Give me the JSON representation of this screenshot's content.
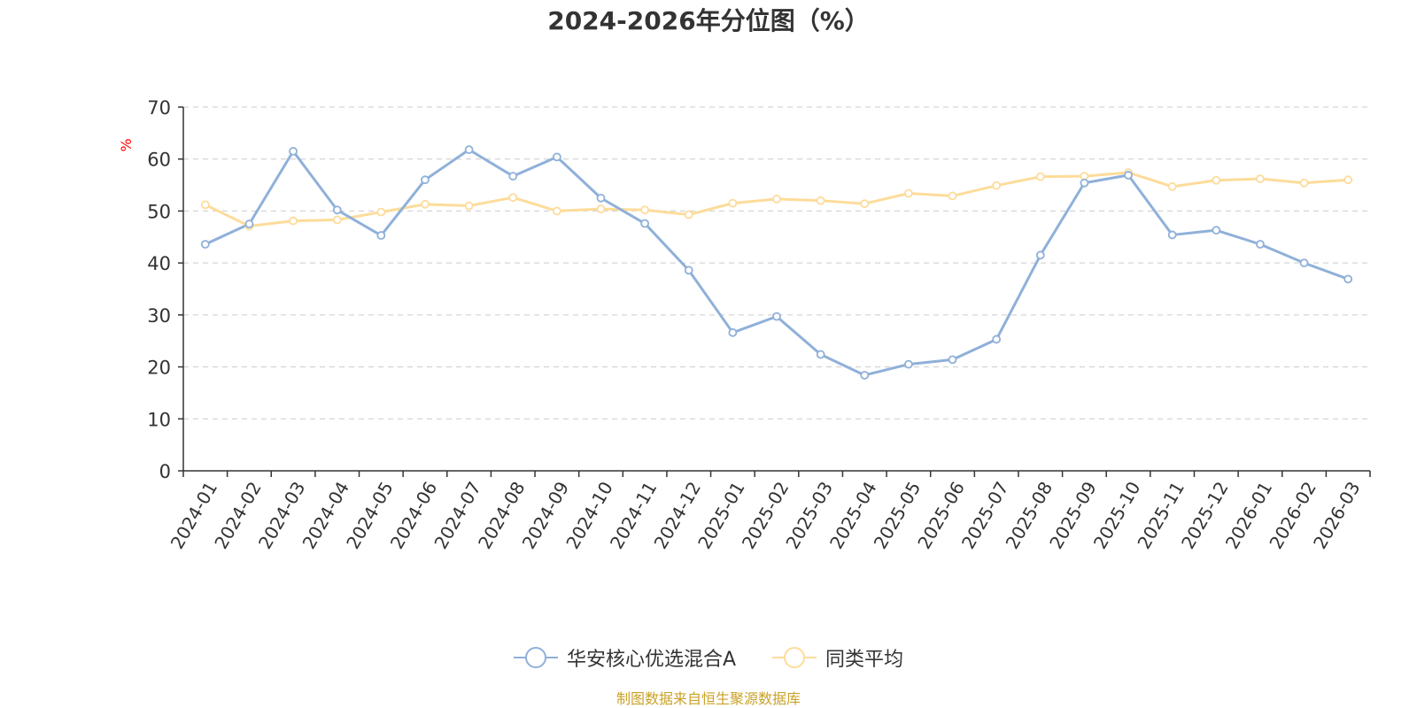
{
  "title": "2024-2026年分位图（%）",
  "source_note": "制图数据来自恒生聚源数据库",
  "colors": {
    "series_a": "#8fb0d9",
    "series_b": "#fddc9a",
    "axis": "#333333",
    "grid": "#cccccc",
    "ylabel": "#ff0000"
  },
  "chart_data": {
    "type": "line",
    "title": "2024-2026年分位图（%）",
    "ylabel": "%",
    "xlabel": "",
    "ylim": [
      0,
      70
    ],
    "yticks": [
      0,
      10,
      20,
      30,
      40,
      50,
      60,
      70
    ],
    "grid": true,
    "legend_position": "bottom-center",
    "categories": [
      "2024-01",
      "2024-02",
      "2024-03",
      "2024-04",
      "2024-05",
      "2024-06",
      "2024-07",
      "2024-08",
      "2024-09",
      "2024-10",
      "2024-11",
      "2024-12",
      "2025-01",
      "2025-02",
      "2025-03",
      "2025-04",
      "2025-05",
      "2025-06",
      "2025-07",
      "2025-08",
      "2025-09",
      "2025-10",
      "2025-11",
      "2025-12",
      "2026-01",
      "2026-02",
      "2026-03"
    ],
    "series": [
      {
        "name": "华安核心优选混合A",
        "color": "#8fb0d9",
        "values": [
          43.6,
          47.5,
          61.5,
          50.2,
          45.3,
          56.0,
          61.8,
          56.7,
          60.4,
          52.5,
          47.6,
          38.6,
          26.6,
          29.7,
          22.4,
          18.4,
          20.5,
          21.4,
          25.3,
          41.5,
          55.4,
          56.9,
          45.4,
          46.3,
          43.6,
          40.0,
          36.9
        ]
      },
      {
        "name": "同类平均",
        "color": "#fddc9a",
        "values": [
          51.2,
          47.1,
          48.1,
          48.3,
          49.8,
          51.3,
          51.0,
          52.6,
          50.0,
          50.4,
          50.2,
          49.3,
          51.5,
          52.3,
          52.0,
          51.4,
          53.4,
          52.9,
          54.9,
          56.6,
          56.7,
          57.4,
          54.7,
          55.9,
          56.2,
          55.4,
          56.0
        ]
      }
    ]
  }
}
